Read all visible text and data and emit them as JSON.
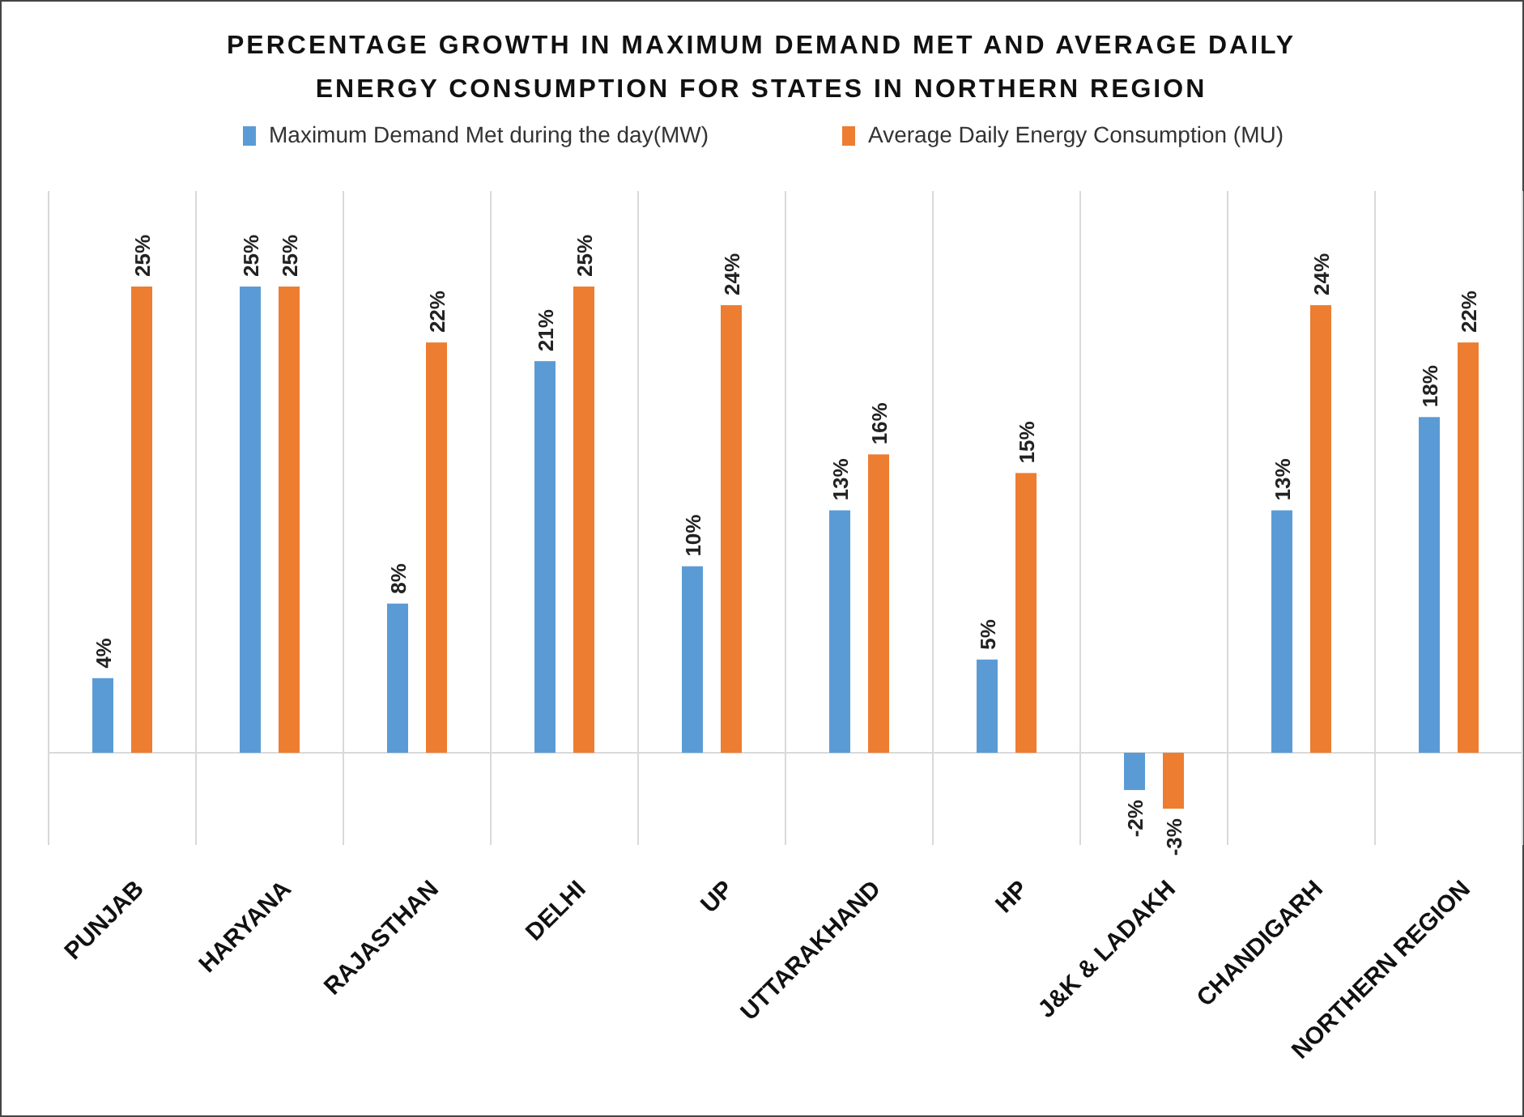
{
  "chart_data": {
    "type": "bar",
    "title": "PERCENTAGE GROWTH IN MAXIMUM DEMAND MET AND AVERAGE DAILY ENERGY CONSUMPTION FOR STATES IN NORTHERN REGION",
    "categories": [
      "PUNJAB",
      "HARYANA",
      "RAJASTHAN",
      "DELHI",
      "UP",
      "UTTARAKHAND",
      "HP",
      "J&K & LADAKH",
      "CHANDIGARH",
      "NORTHERN  REGION"
    ],
    "series": [
      {
        "name": "Maximum Demand Met during the day(MW)",
        "color": "#5b9bd5",
        "values": [
          4,
          25,
          8,
          21,
          10,
          13,
          5,
          -2,
          13,
          18
        ],
        "value_labels": [
          "4%",
          "25%",
          "8%",
          "21%",
          "10%",
          "13%",
          "5%",
          "-2%",
          "13%",
          "18%"
        ]
      },
      {
        "name": "Average Daily Energy Consumption (MU)",
        "color": "#ed7d31",
        "values": [
          25,
          25,
          22,
          25,
          24,
          16,
          15,
          -3,
          24,
          22
        ],
        "value_labels": [
          "25%",
          "25%",
          "22%",
          "25%",
          "24%",
          "16%",
          "15%",
          "-3%",
          "24%",
          "22%"
        ]
      }
    ],
    "grid": "x",
    "legend": "top"
  }
}
